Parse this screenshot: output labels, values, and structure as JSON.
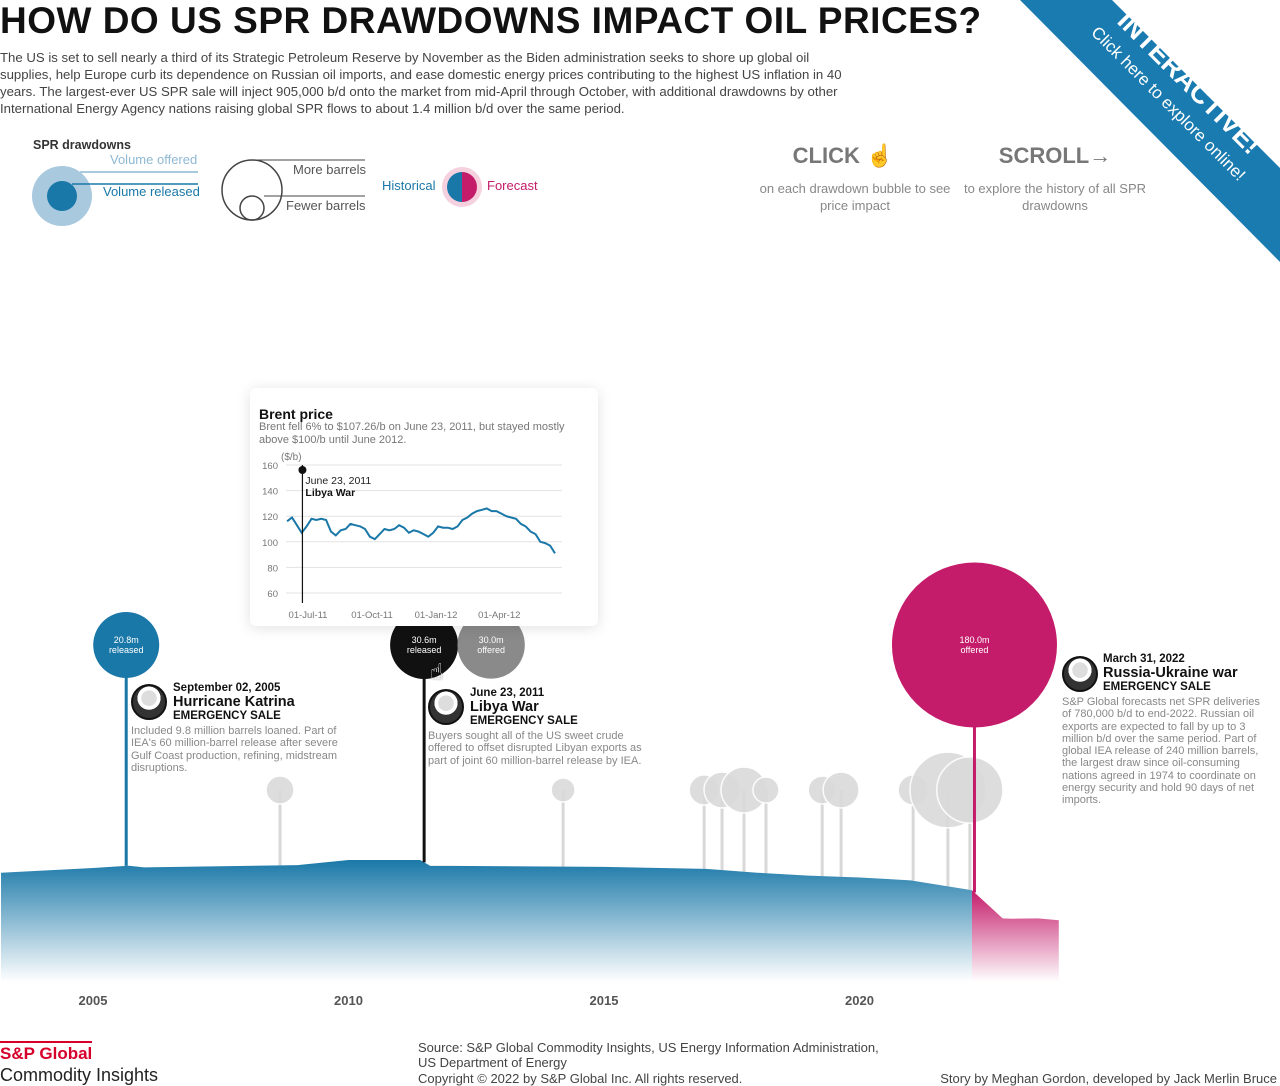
{
  "header": {
    "title": "HOW DO US SPR DRAWDOWNS IMPACT OIL PRICES?",
    "intro": "The US is set to sell nearly a third of its Strategic Petroleum Reserve by November as the Biden administration seeks to shore up global oil supplies, help Europe curb its dependence on Russian oil imports, and ease domestic energy prices contributing to the highest US inflation in 40 years. The largest-ever US SPR sale will inject 905,000 b/d onto the market from mid-April through October, with additional drawdowns by other International Energy Agency nations raising global SPR flows to about 1.4 million b/d over the same period."
  },
  "banner": {
    "title": "INTERACTIVE!",
    "subtitle": "Click here to explore online!",
    "color": "#1a7bb0"
  },
  "legend": {
    "title": "SPR drawdowns",
    "offered": "Volume offered",
    "released": "Volume released",
    "more": "More barrels",
    "fewer": "Fewer barrels",
    "historical": "Historical",
    "forecast": "Forecast"
  },
  "hints": {
    "click_title": "CLICK",
    "click_icon": "pointing-hand-icon",
    "click_text": "on each drawdown bubble to see price impact",
    "scroll_title": "SCROLL",
    "scroll_icon": "arrow-right-icon",
    "scroll_text": "to explore the history of all SPR drawdowns"
  },
  "colors": {
    "historical": "#1a78a8",
    "forecast": "#c41c6a",
    "selected": "#111111",
    "offered_gray": "#8a8a8a",
    "minor": "#dadada",
    "offered_light": "#a9c9df"
  },
  "events": [
    {
      "date": "September 02, 2005",
      "name": "Hurricane Katrina",
      "type": "EMERGENCY SALE",
      "text": "Included 9.8 million barrels loaned. Part of IEA's 60 million-barrel release after severe Gulf Coast production, refining, midstream disruptions.",
      "bubble": "20.8m",
      "bubble_sub": "released"
    },
    {
      "date": "June 23, 2011",
      "name": "Libya War",
      "type": "EMERGENCY SALE",
      "text": "Buyers sought all of the US sweet crude offered to offset disrupted Libyan exports as part of joint 60 million-barrel release by IEA.",
      "bubble": "30.6m",
      "bubble_sub": "released",
      "bubble2": "30.0m",
      "bubble2_sub": "offered"
    },
    {
      "date": "March 31, 2022",
      "name": "Russia-Ukraine war",
      "type": "EMERGENCY SALE",
      "text": "S&P Global forecasts net SPR deliveries of 780,000 b/d to end-2022. Russian oil exports are expected to fall by up to 3 million b/d over the same period. Part of global IEA release of 240 million barrels, the largest draw since oil-consuming nations agreed in 1974 to coordinate on energy security and hold 90 days of net imports.",
      "bubble": "180.0m",
      "bubble_sub": "offered"
    }
  ],
  "chart_data": [
    {
      "type": "line",
      "title": "Brent price",
      "subtitle": "Brent fell 6% to $107.26/b on June 23, 2011, but stayed mostly above $100/b until June 2012.",
      "ylabel": "($/b)",
      "ylim": [
        60,
        160
      ],
      "yticks": [
        "160",
        "140",
        "120",
        "100",
        "80",
        "60"
      ],
      "xticks": [
        "01-Jul-11",
        "01-Oct-11",
        "01-Jan-12",
        "01-Apr-12"
      ],
      "xtick_dates": [
        "2011-07-01",
        "2011-10-01",
        "2012-01-01",
        "2012-04-01"
      ],
      "grid": true,
      "annotation": {
        "date": "2011-06-23",
        "label_date": "June 23, 2011",
        "label": "Libya War"
      },
      "series": [
        {
          "color": "#1a78a8",
          "points": [
            [
              "2011-06-01",
              116
            ],
            [
              "2011-06-08",
              119
            ],
            [
              "2011-06-15",
              113
            ],
            [
              "2011-06-22",
              107
            ],
            [
              "2011-06-29",
              112
            ],
            [
              "2011-07-06",
              118
            ],
            [
              "2011-07-13",
              117
            ],
            [
              "2011-07-20",
              118
            ],
            [
              "2011-07-27",
              117
            ],
            [
              "2011-08-03",
              108
            ],
            [
              "2011-08-10",
              105
            ],
            [
              "2011-08-17",
              109
            ],
            [
              "2011-08-24",
              110
            ],
            [
              "2011-08-31",
              114
            ],
            [
              "2011-09-07",
              113
            ],
            [
              "2011-09-14",
              112
            ],
            [
              "2011-09-21",
              110
            ],
            [
              "2011-09-28",
              104
            ],
            [
              "2011-10-05",
              102
            ],
            [
              "2011-10-12",
              106
            ],
            [
              "2011-10-19",
              110
            ],
            [
              "2011-10-26",
              109
            ],
            [
              "2011-11-02",
              110
            ],
            [
              "2011-11-09",
              113
            ],
            [
              "2011-11-16",
              111
            ],
            [
              "2011-11-23",
              107
            ],
            [
              "2011-11-30",
              109
            ],
            [
              "2011-12-07",
              108
            ],
            [
              "2011-12-14",
              106
            ],
            [
              "2011-12-21",
              104
            ],
            [
              "2011-12-28",
              107
            ],
            [
              "2012-01-04",
              112
            ],
            [
              "2012-01-11",
              111
            ],
            [
              "2012-01-18",
              111
            ],
            [
              "2012-01-25",
              110
            ],
            [
              "2012-02-01",
              112
            ],
            [
              "2012-02-08",
              117
            ],
            [
              "2012-02-15",
              119
            ],
            [
              "2012-02-22",
              122
            ],
            [
              "2012-02-29",
              124
            ],
            [
              "2012-03-07",
              125
            ],
            [
              "2012-03-14",
              126
            ],
            [
              "2012-03-21",
              124
            ],
            [
              "2012-03-28",
              124
            ],
            [
              "2012-04-04",
              122
            ],
            [
              "2012-04-11",
              120
            ],
            [
              "2012-04-18",
              119
            ],
            [
              "2012-04-25",
              118
            ],
            [
              "2012-05-02",
              114
            ],
            [
              "2012-05-09",
              112
            ],
            [
              "2012-05-16",
              108
            ],
            [
              "2012-05-23",
              106
            ],
            [
              "2012-05-30",
              100
            ],
            [
              "2012-06-06",
              99
            ],
            [
              "2012-06-13",
              97
            ],
            [
              "2012-06-20",
              91
            ]
          ]
        }
      ]
    },
    {
      "type": "area",
      "xticks": [
        "2005",
        "2010",
        "2015",
        "2020"
      ],
      "inventory_unit": "million barrels",
      "historical": [
        [
          2003.2,
          660
        ],
        [
          2005,
          685
        ],
        [
          2005.7,
          697
        ],
        [
          2006,
          688
        ],
        [
          2009,
          700
        ],
        [
          2010,
          727
        ],
        [
          2011.4,
          727
        ],
        [
          2011.6,
          696
        ],
        [
          2012,
          696
        ],
        [
          2015,
          691
        ],
        [
          2017,
          680
        ],
        [
          2018,
          660
        ],
        [
          2019,
          645
        ],
        [
          2020,
          635
        ],
        [
          2021,
          620
        ],
        [
          2022.2,
          568
        ]
      ],
      "forecast": [
        [
          2022.2,
          568
        ],
        [
          2022.6,
          470
        ],
        [
          2022.8,
          420
        ],
        [
          2023,
          418
        ],
        [
          2023.5,
          420
        ],
        [
          2023.9,
          410
        ]
      ],
      "bubbles": [
        {
          "year": 2005.65,
          "volume": 20.8,
          "kind": "historical",
          "label_event": 0
        },
        {
          "year": 2011.48,
          "volume": 30.6,
          "kind": "selected",
          "label_event": 1
        },
        {
          "year": 2011.48,
          "volume": 30.0,
          "kind": "offered",
          "label_event": 1,
          "offset": true
        },
        {
          "year": 2022.25,
          "volume": 180.0,
          "kind": "forecast",
          "label_event": 2
        }
      ],
      "minor_bubbles": [
        [
          2008.66,
          5.2
        ],
        [
          2014.2,
          3.8
        ],
        [
          2016.96,
          6
        ],
        [
          2017.31,
          8.6
        ],
        [
          2017.74,
          14
        ],
        [
          2018.17,
          4.5
        ],
        [
          2019.27,
          5.2
        ],
        [
          2019.64,
          8.6
        ],
        [
          2021.05,
          6
        ],
        [
          2021.73,
          38
        ],
        [
          2022.16,
          29
        ]
      ]
    }
  ],
  "footer": {
    "logo_top": "S&P Global",
    "logo_bottom": "Commodity Insights",
    "source": "Source: S&P Global Commodity Insights, US Energy Information Administration, US Department of Energy",
    "copyright": "Copyright © 2022 by S&P Global Inc. All rights reserved.",
    "credit": "Story by Meghan Gordon, developed by Jack Merlin Bruce"
  }
}
